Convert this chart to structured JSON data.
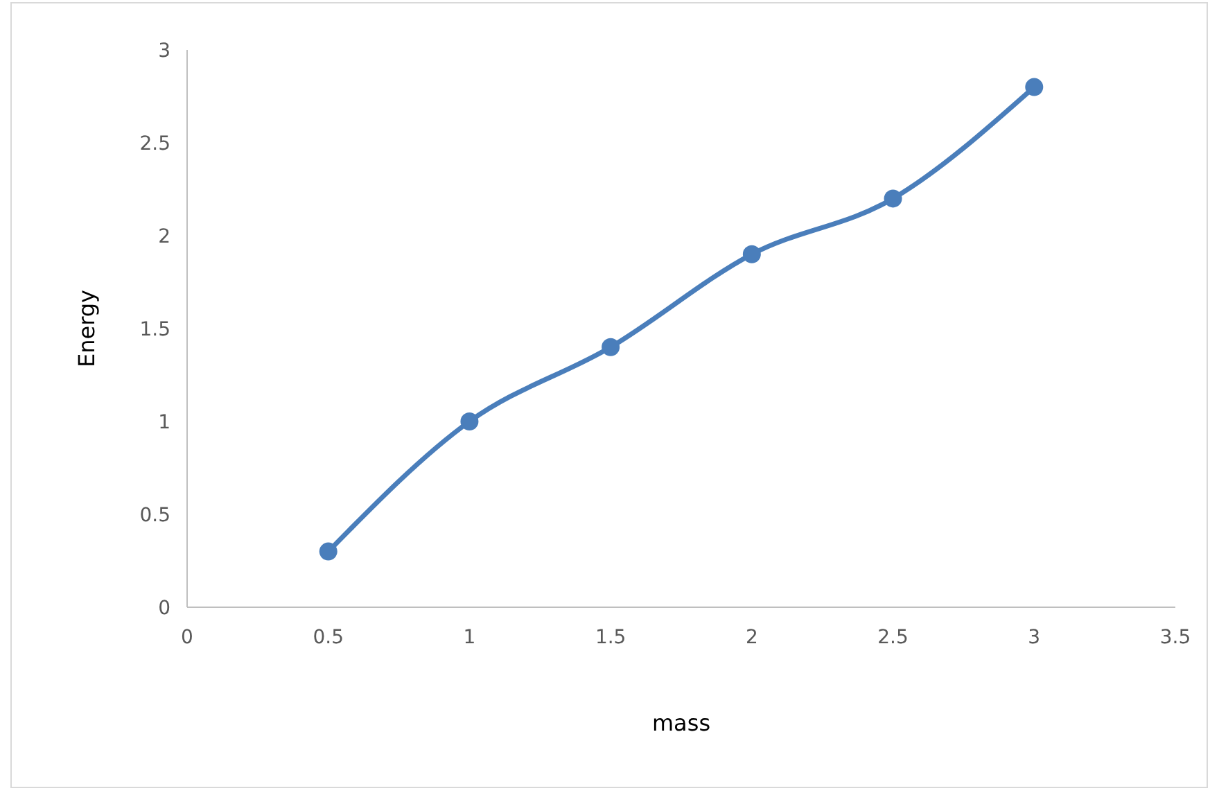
{
  "chart_data": {
    "type": "line",
    "xlabel": "mass",
    "ylabel": "Energy",
    "x": [
      0.5,
      1,
      1.5,
      2,
      2.5,
      3
    ],
    "series": [
      {
        "color": "#4a7ebb",
        "values": [
          0.3,
          1.0,
          1.4,
          1.9,
          2.2,
          2.8
        ]
      }
    ],
    "xlim": [
      0,
      3.5
    ],
    "xticks": [
      0,
      0.5,
      1,
      1.5,
      2,
      2.5,
      3,
      3.5
    ],
    "ylim": [
      0,
      3
    ],
    "yticks": [
      0,
      0.5,
      1,
      1.5,
      2,
      2.5,
      3
    ],
    "grid": false,
    "marker": "circle",
    "line_style": "solid"
  }
}
